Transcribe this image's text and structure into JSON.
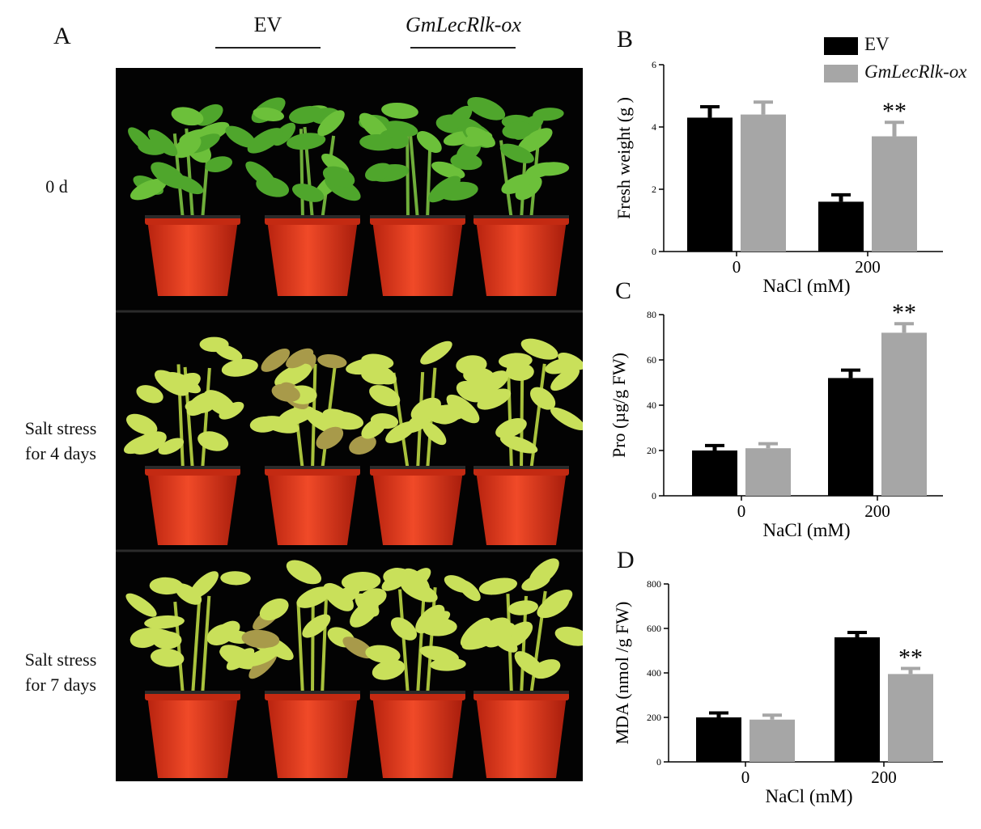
{
  "panel_a": {
    "letter": "A",
    "groups": [
      "EV",
      "GmLecRlk-ox"
    ],
    "rows": [
      "0 d",
      "Salt stress\nfor 4 days",
      "Salt stress\nfor 7 days"
    ]
  },
  "legend": {
    "items": [
      "EV",
      "GmLecRlk-ox"
    ]
  },
  "colors": {
    "ev": "#000000",
    "ox": "#a6a6a6",
    "pot": "#e8331a",
    "leaf_healthy": "#4fa62c",
    "leaf_stressed": "#c9e05a"
  },
  "chart_data": [
    {
      "letter": "B",
      "type": "bar",
      "categories": [
        "0",
        "200"
      ],
      "xlabel": "NaCl (mM)",
      "ylabel": "Fresh weight (g )",
      "ylim": [
        0,
        6
      ],
      "yticks": [
        "0",
        "2",
        "4",
        "6"
      ],
      "series": [
        {
          "name": "EV",
          "values": [
            4.3,
            1.6
          ],
          "errors": [
            0.35,
            0.22
          ]
        },
        {
          "name": "GmLecRlk-ox",
          "values": [
            4.4,
            3.7
          ],
          "errors": [
            0.4,
            0.45
          ]
        }
      ],
      "significance": {
        "label": "**",
        "category": "200",
        "series": "GmLecRlk-ox"
      }
    },
    {
      "letter": "C",
      "type": "bar",
      "categories": [
        "0",
        "200"
      ],
      "xlabel": "NaCl (mM)",
      "ylabel": "Pro (µg/g FW)",
      "ylim": [
        0,
        80
      ],
      "yticks": [
        "0",
        "20",
        "40",
        "60",
        "80"
      ],
      "series": [
        {
          "name": "EV",
          "values": [
            20,
            52
          ],
          "errors": [
            2.2,
            3.5
          ]
        },
        {
          "name": "GmLecRlk-ox",
          "values": [
            21,
            72
          ],
          "errors": [
            2.0,
            4.0
          ]
        }
      ],
      "significance": {
        "label": "**",
        "category": "200",
        "series": "GmLecRlk-ox"
      }
    },
    {
      "letter": "D",
      "type": "bar",
      "categories": [
        "0",
        "200"
      ],
      "xlabel": "NaCl (mM)",
      "ylabel": "MDA (nmol /g FW)",
      "ylim": [
        0,
        800
      ],
      "yticks": [
        "0",
        "200",
        "400",
        "600",
        "800"
      ],
      "series": [
        {
          "name": "EV",
          "values": [
            200,
            560
          ],
          "errors": [
            20,
            22
          ]
        },
        {
          "name": "GmLecRlk-ox",
          "values": [
            190,
            395
          ],
          "errors": [
            20,
            25
          ]
        }
      ],
      "significance": {
        "label": "**",
        "category": "200",
        "series": "GmLecRlk-ox"
      }
    }
  ]
}
